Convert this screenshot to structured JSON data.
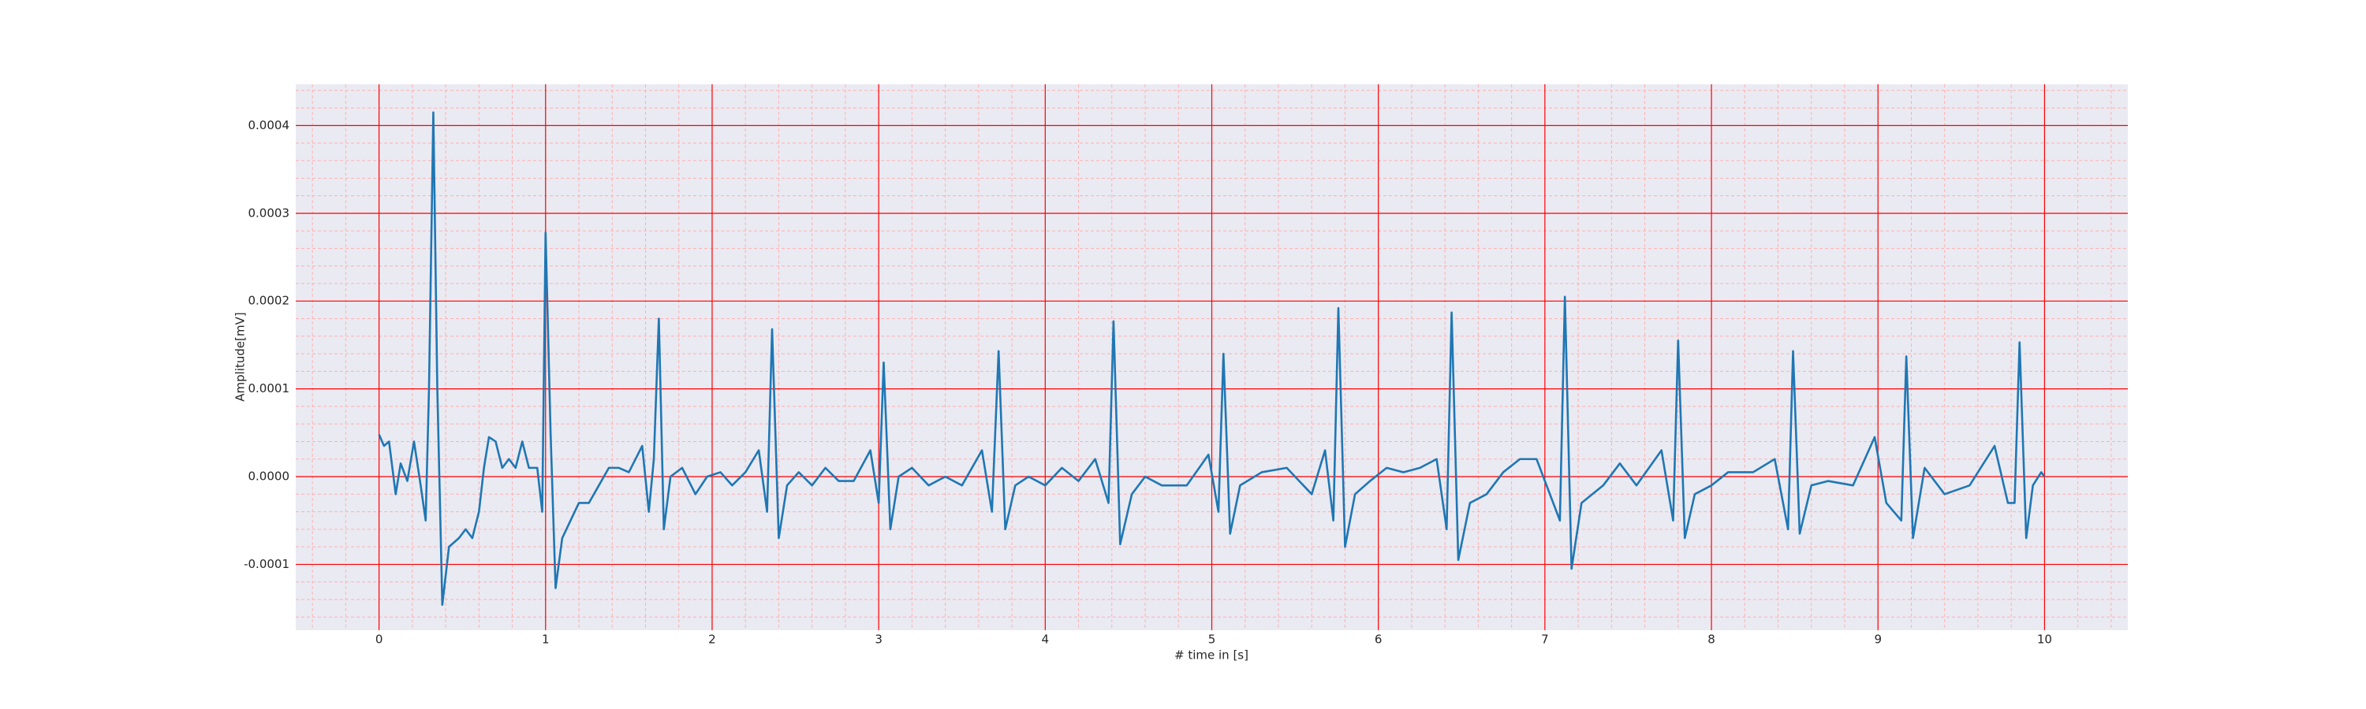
{
  "chart_data": {
    "type": "line",
    "xlabel": "# time in [s]",
    "ylabel": "Amplitude[mV]",
    "xlim": [
      -0.5,
      10.5
    ],
    "ylim": [
      -0.000175,
      0.000447
    ],
    "xticks": [
      0,
      1,
      2,
      3,
      4,
      5,
      6,
      7,
      8,
      9,
      10
    ],
    "yticks": [
      -0.0001,
      {
        "value": 0,
        "label": "0.0000"
      },
      0.0001,
      0.0002,
      0.0003,
      0.0004
    ],
    "grid": true,
    "minor_divisions": 5,
    "grid_color": "#ff0000",
    "minor_grid_color": "#ffb0b0",
    "background": "#eaeaf2",
    "series": [
      {
        "color": "#1f77b4",
        "x": [
          0,
          0.03,
          0.06,
          0.1,
          0.13,
          0.17,
          0.21,
          0.25,
          0.28,
          0.3,
          0.326,
          0.35,
          0.38,
          0.42,
          0.48,
          0.52,
          0.56,
          0.6,
          0.63,
          0.66,
          0.7,
          0.74,
          0.78,
          0.82,
          0.86,
          0.9,
          0.95,
          0.98,
          1.0,
          1.03,
          1.06,
          1.1,
          1.15,
          1.2,
          1.26,
          1.32,
          1.38,
          1.44,
          1.5,
          1.58,
          1.62,
          1.65,
          1.68,
          1.71,
          1.75,
          1.82,
          1.9,
          1.97,
          2.05,
          2.12,
          2.2,
          2.28,
          2.33,
          2.36,
          2.4,
          2.45,
          2.52,
          2.6,
          2.68,
          2.76,
          2.85,
          2.95,
          3.0,
          3.03,
          3.07,
          3.12,
          3.2,
          3.3,
          3.4,
          3.5,
          3.62,
          3.68,
          3.72,
          3.76,
          3.82,
          3.9,
          4.0,
          4.1,
          4.2,
          4.3,
          4.38,
          4.41,
          4.45,
          4.52,
          4.6,
          4.7,
          4.85,
          4.98,
          5.04,
          5.07,
          5.11,
          5.17,
          5.3,
          5.45,
          5.6,
          5.68,
          5.73,
          5.76,
          5.8,
          5.86,
          5.95,
          6.05,
          6.15,
          6.25,
          6.35,
          6.41,
          6.44,
          6.48,
          6.55,
          6.65,
          6.75,
          6.85,
          6.95,
          7.09,
          7.12,
          7.16,
          7.22,
          7.35,
          7.45,
          7.55,
          7.7,
          7.77,
          7.8,
          7.84,
          7.9,
          8.0,
          8.1,
          8.25,
          8.38,
          8.46,
          8.49,
          8.53,
          8.6,
          8.7,
          8.85,
          8.98,
          9.05,
          9.14,
          9.17,
          9.21,
          9.28,
          9.4,
          9.55,
          9.7,
          9.78,
          9.82,
          9.85,
          9.89,
          9.93,
          9.98,
          10.0
        ],
        "values": [
          4.8e-05,
          3.5e-05,
          4e-05,
          -2e-05,
          1.5e-05,
          -5e-06,
          4e-05,
          -1e-05,
          -5e-05,
          0.0001,
          0.000415,
          0.0001,
          -0.000146,
          -8e-05,
          -7e-05,
          -6e-05,
          -7e-05,
          -4e-05,
          1e-05,
          4.5e-05,
          4e-05,
          1e-05,
          2e-05,
          1e-05,
          4e-05,
          1e-05,
          1e-05,
          -4e-05,
          0.000278,
          5e-05,
          -0.000127,
          -7e-05,
          -5e-05,
          -3e-05,
          -3e-05,
          -1e-05,
          1e-05,
          1e-05,
          5e-06,
          3.5e-05,
          -4e-05,
          2e-05,
          0.00018,
          -6e-05,
          0.0,
          1e-05,
          -2e-05,
          0.0,
          5e-06,
          -1e-05,
          5e-06,
          3e-05,
          -4e-05,
          0.000168,
          -7e-05,
          -1e-05,
          5e-06,
          -1e-05,
          1e-05,
          -5e-06,
          -5e-06,
          3e-05,
          -3e-05,
          0.00013,
          -6e-05,
          0.0,
          1e-05,
          -1e-05,
          0.0,
          -1e-05,
          3e-05,
          -4e-05,
          0.000143,
          -6e-05,
          -1e-05,
          0.0,
          -1e-05,
          1e-05,
          -5e-06,
          2e-05,
          -3e-05,
          0.000177,
          -7.7e-05,
          -2e-05,
          0.0,
          -1e-05,
          -1e-05,
          2.5e-05,
          -4e-05,
          0.00014,
          -6.5e-05,
          -1e-05,
          5e-06,
          1e-05,
          -2e-05,
          3e-05,
          -5e-05,
          0.000192,
          -8e-05,
          -2e-05,
          -5e-06,
          1e-05,
          5e-06,
          1e-05,
          2e-05,
          -6e-05,
          0.000187,
          -9.5e-05,
          -3e-05,
          -2e-05,
          5e-06,
          2e-05,
          2e-05,
          -5e-05,
          0.000205,
          -0.000105,
          -3e-05,
          -1e-05,
          1.5e-05,
          -1e-05,
          3e-05,
          -5e-05,
          0.000155,
          -7e-05,
          -2e-05,
          -1e-05,
          5e-06,
          5e-06,
          2e-05,
          -6e-05,
          0.000143,
          -6.5e-05,
          -1e-05,
          -5e-06,
          -1e-05,
          4.5e-05,
          -3e-05,
          -5e-05,
          0.000137,
          -7e-05,
          1e-05,
          -2e-05,
          -1e-05,
          3.5e-05,
          -3e-05,
          -3e-05,
          0.000153,
          -7e-05,
          -1e-05,
          5e-06,
          0.0
        ]
      }
    ]
  }
}
